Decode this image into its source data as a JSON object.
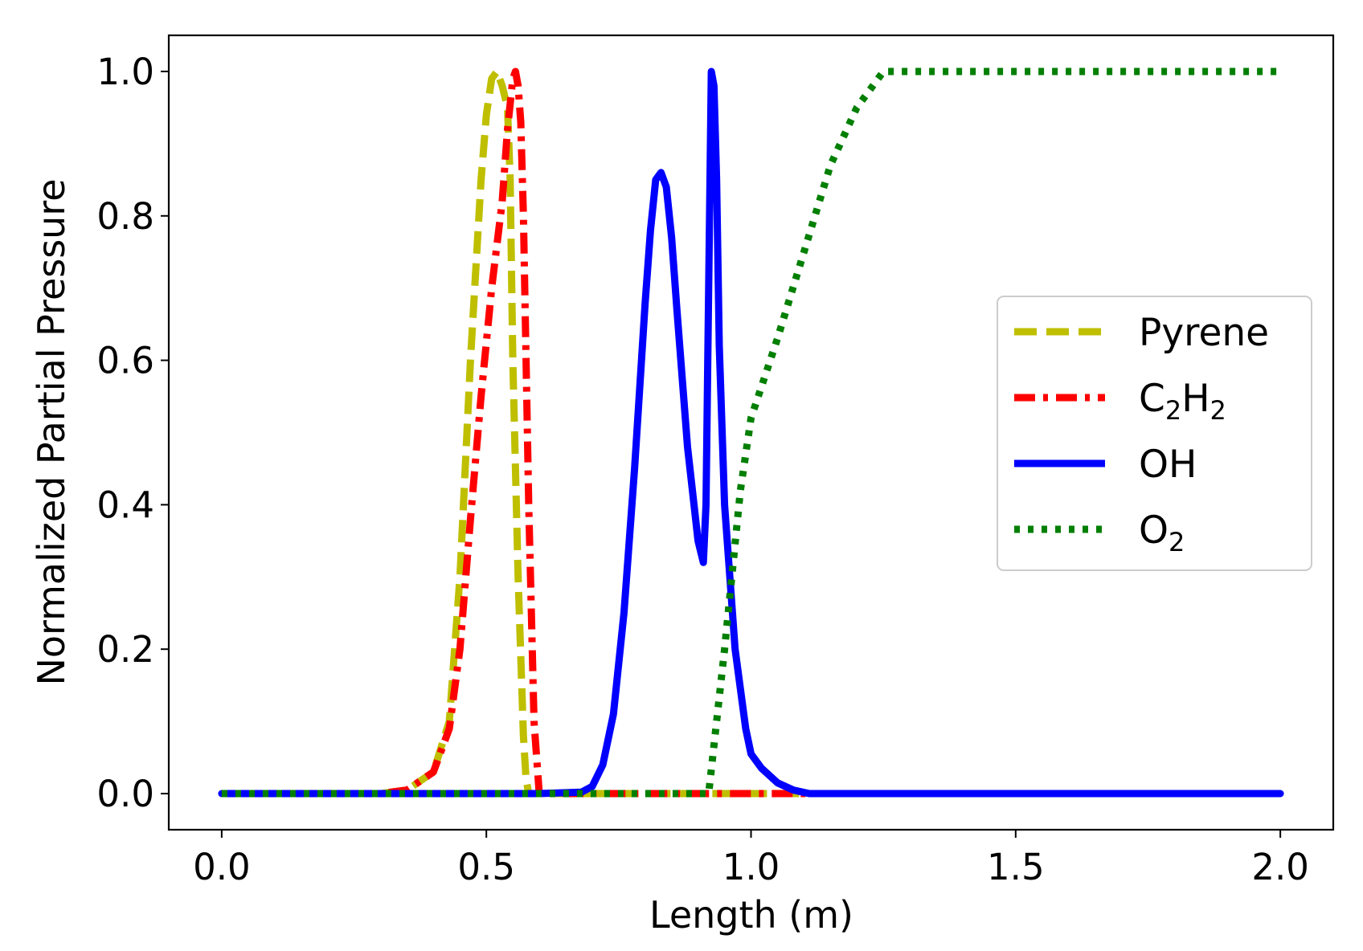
{
  "chart_data": {
    "type": "line",
    "title": "",
    "xlabel": "Length (m)",
    "ylabel": "Normalized Partial Pressure",
    "xlim": [
      -0.1,
      2.1
    ],
    "ylim": [
      -0.05,
      1.05
    ],
    "xticks": [
      0.0,
      0.5,
      1.0,
      1.5,
      2.0
    ],
    "xtick_labels": [
      "0.0",
      "0.5",
      "1.0",
      "1.5",
      "2.0"
    ],
    "yticks": [
      0.0,
      0.2,
      0.4,
      0.6,
      0.8,
      1.0
    ],
    "ytick_labels": [
      "0.0",
      "0.2",
      "0.4",
      "0.6",
      "0.8",
      "1.0"
    ],
    "grid": false,
    "legend_position": "center-right",
    "series": [
      {
        "name": "Pyrene",
        "label_base": "Pyrene",
        "label_sub": "",
        "label_suffix": "",
        "color": "#bfbf00",
        "style": "dashed",
        "x": [
          0.0,
          0.3,
          0.35,
          0.4,
          0.43,
          0.45,
          0.47,
          0.49,
          0.5,
          0.51,
          0.52,
          0.53,
          0.54,
          0.545,
          0.55,
          0.56,
          0.57,
          0.575,
          0.58,
          0.6,
          0.8,
          0.9,
          1.0,
          1.1,
          2.0
        ],
        "y": [
          0.0,
          0.0,
          0.005,
          0.03,
          0.1,
          0.3,
          0.6,
          0.85,
          0.94,
          0.99,
          1.0,
          0.98,
          0.95,
          0.85,
          0.6,
          0.3,
          0.08,
          0.02,
          0.0,
          0.0,
          0.0,
          0.0,
          0.0,
          0.0,
          0.0
        ]
      },
      {
        "name": "C2H2",
        "label_base": "C",
        "label_sub": "2",
        "label_suffix": "H",
        "label_sub2": "2",
        "color": "#ff0000",
        "style": "dashdot",
        "x": [
          0.0,
          0.3,
          0.35,
          0.4,
          0.43,
          0.45,
          0.47,
          0.49,
          0.51,
          0.53,
          0.54,
          0.55,
          0.555,
          0.56,
          0.565,
          0.57,
          0.58,
          0.59,
          0.6,
          0.7,
          0.8,
          1.0,
          1.1,
          2.0
        ],
        "y": [
          0.0,
          0.0,
          0.005,
          0.03,
          0.09,
          0.2,
          0.38,
          0.55,
          0.7,
          0.82,
          0.92,
          0.99,
          1.0,
          0.98,
          0.93,
          0.8,
          0.4,
          0.1,
          0.0,
          0.0,
          0.0,
          0.0,
          0.0,
          0.0
        ]
      },
      {
        "name": "OH",
        "label_base": "OH",
        "label_sub": "",
        "label_suffix": "",
        "color": "#0000ff",
        "style": "solid",
        "x": [
          0.0,
          0.6,
          0.68,
          0.7,
          0.72,
          0.74,
          0.76,
          0.78,
          0.8,
          0.81,
          0.82,
          0.83,
          0.84,
          0.85,
          0.86,
          0.88,
          0.9,
          0.91,
          0.915,
          0.92,
          0.925,
          0.93,
          0.935,
          0.94,
          0.95,
          0.97,
          0.99,
          1.0,
          1.02,
          1.05,
          1.08,
          1.11,
          1.2,
          2.0
        ],
        "y": [
          0.0,
          0.0,
          0.002,
          0.01,
          0.04,
          0.11,
          0.25,
          0.45,
          0.68,
          0.78,
          0.85,
          0.86,
          0.84,
          0.77,
          0.67,
          0.48,
          0.35,
          0.32,
          0.4,
          0.7,
          1.0,
          0.98,
          0.85,
          0.62,
          0.4,
          0.2,
          0.09,
          0.055,
          0.035,
          0.015,
          0.005,
          0.0,
          0.0,
          0.0
        ]
      },
      {
        "name": "O2",
        "label_base": "O",
        "label_sub": "2",
        "label_suffix": "",
        "color": "#007f00",
        "style": "dotted",
        "x": [
          0.0,
          0.92,
          0.95,
          0.98,
          1.0,
          1.05,
          1.1,
          1.15,
          1.2,
          1.25,
          1.3,
          2.0
        ],
        "y": [
          0.0,
          0.0,
          0.2,
          0.42,
          0.52,
          0.63,
          0.75,
          0.87,
          0.95,
          1.0,
          1.0,
          1.0
        ]
      }
    ]
  }
}
